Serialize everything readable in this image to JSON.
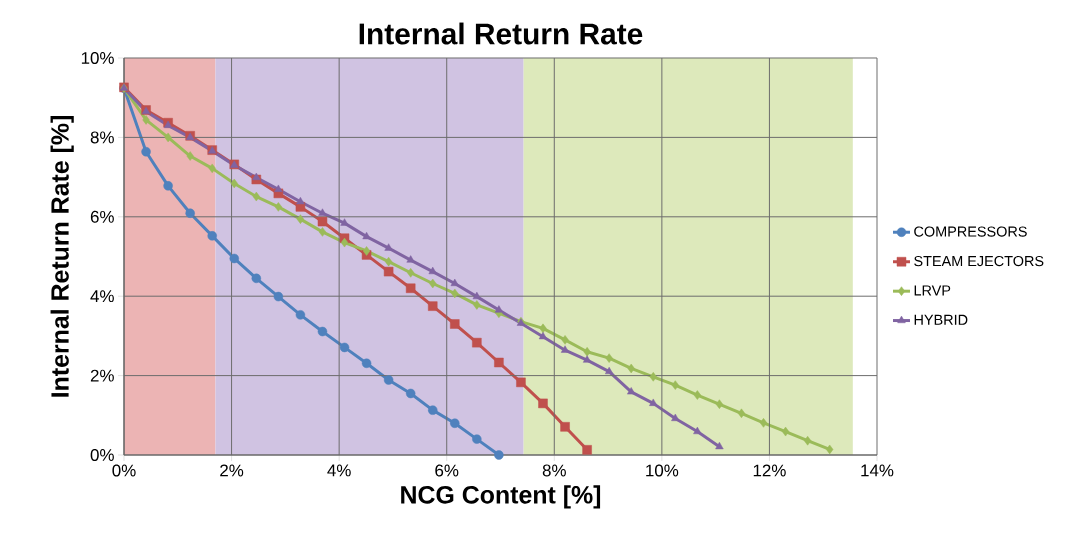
{
  "chart_data": {
    "type": "line",
    "title": "Internal Return Rate",
    "xlabel": "NCG Content [%]",
    "ylabel": "Internal Return Rate [%]",
    "xlim": [
      0,
      14
    ],
    "ylim": [
      0,
      10
    ],
    "xticks": [
      {
        "value": 0,
        "label": "0%"
      },
      {
        "value": 2,
        "label": "2%"
      },
      {
        "value": 4,
        "label": "4%"
      },
      {
        "value": 6,
        "label": "6%"
      },
      {
        "value": 8,
        "label": "8%"
      },
      {
        "value": 10,
        "label": "10%"
      },
      {
        "value": 12,
        "label": "12%"
      },
      {
        "value": 14,
        "label": "14%"
      }
    ],
    "yticks": [
      {
        "value": 0,
        "label": "0%"
      },
      {
        "value": 2,
        "label": "2%"
      },
      {
        "value": 4,
        "label": "4%"
      },
      {
        "value": 6,
        "label": "6%"
      },
      {
        "value": 8,
        "label": "8%"
      },
      {
        "value": 10,
        "label": "10%"
      }
    ],
    "grid": true,
    "legend": "right",
    "line_style": "solid",
    "bands": [
      {
        "axis": "x",
        "from": 0,
        "to": 1.7,
        "color": "#ecb4b4"
      },
      {
        "axis": "x",
        "from": 1.7,
        "to": 7.43,
        "color": "#d0c3e2"
      },
      {
        "axis": "x",
        "from": 7.43,
        "to": 13.55,
        "color": "#dde9bb"
      }
    ],
    "series": [
      {
        "name": "COMPRESSORS",
        "color": "#4f81bd",
        "marker": "circle",
        "x": [
          0,
          0.41,
          0.82,
          1.23,
          1.64,
          2.05,
          2.46,
          2.87,
          3.28,
          3.69,
          4.1,
          4.51,
          4.92,
          5.33,
          5.74,
          6.15,
          6.56,
          6.97
        ],
        "values": [
          9.24,
          7.64,
          6.78,
          6.09,
          5.52,
          4.95,
          4.45,
          3.99,
          3.53,
          3.11,
          2.71,
          2.31,
          1.89,
          1.55,
          1.13,
          0.8,
          0.4,
          0
        ]
      },
      {
        "name": "STEAM EJECTORS",
        "color": "#c0504d",
        "marker": "square",
        "x": [
          0,
          0.41,
          0.82,
          1.23,
          1.64,
          2.05,
          2.46,
          2.87,
          3.28,
          3.69,
          4.1,
          4.51,
          4.92,
          5.33,
          5.74,
          6.15,
          6.56,
          6.97,
          7.38,
          7.79,
          8.2,
          8.61
        ],
        "values": [
          9.26,
          8.69,
          8.37,
          8.04,
          7.68,
          7.32,
          6.94,
          6.59,
          6.25,
          5.88,
          5.46,
          5.04,
          4.62,
          4.2,
          3.75,
          3.3,
          2.83,
          2.33,
          1.83,
          1.3,
          0.71,
          0.13
        ]
      },
      {
        "name": "LRVP",
        "color": "#9bbb59",
        "marker": "diamond",
        "x": [
          0,
          0.41,
          0.82,
          1.23,
          1.64,
          2.05,
          2.46,
          2.87,
          3.28,
          3.69,
          4.1,
          4.51,
          4.92,
          5.33,
          5.74,
          6.15,
          6.56,
          6.97,
          7.38,
          7.79,
          8.2,
          8.61,
          9.02,
          9.43,
          9.84,
          10.25,
          10.66,
          11.07,
          11.48,
          11.89,
          12.3,
          12.71,
          13.12
        ],
        "values": [
          9.24,
          8.44,
          8.0,
          7.53,
          7.22,
          6.84,
          6.51,
          6.25,
          5.94,
          5.62,
          5.35,
          5.14,
          4.87,
          4.59,
          4.32,
          4.07,
          3.78,
          3.57,
          3.36,
          3.19,
          2.9,
          2.6,
          2.44,
          2.18,
          1.97,
          1.76,
          1.51,
          1.28,
          1.05,
          0.81,
          0.59,
          0.36,
          0.14
        ]
      },
      {
        "name": "HYBRID",
        "color": "#8064a2",
        "marker": "triangle",
        "x": [
          0,
          0.41,
          0.82,
          1.23,
          1.64,
          2.05,
          2.46,
          2.87,
          3.28,
          3.69,
          4.1,
          4.51,
          4.92,
          5.33,
          5.74,
          6.15,
          6.56,
          6.97,
          7.38,
          7.79,
          8.2,
          8.61,
          9.02,
          9.43,
          9.84,
          10.25,
          10.66,
          11.07
        ],
        "values": [
          9.24,
          8.65,
          8.3,
          8.0,
          7.66,
          7.3,
          6.99,
          6.69,
          6.38,
          6.09,
          5.84,
          5.5,
          5.21,
          4.91,
          4.62,
          4.32,
          3.99,
          3.65,
          3.32,
          2.98,
          2.64,
          2.39,
          2.1,
          1.59,
          1.3,
          0.92,
          0.59,
          0.21
        ]
      }
    ]
  }
}
